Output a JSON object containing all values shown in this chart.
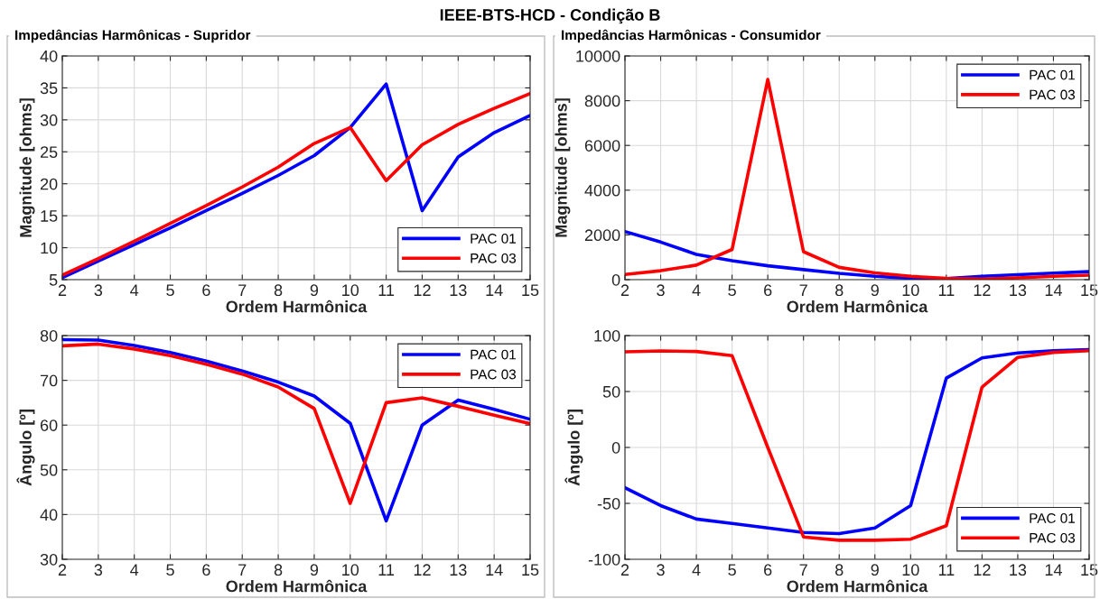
{
  "chart_data": [
    {
      "type": "line",
      "title": "IEEE-BTS-HCD - Condição B",
      "subtitle": "Impedâncias Harmônicas - Supridor",
      "xlabel": "Ordem Harmônica",
      "ylabel": "Magnitude [ohms]",
      "x": [
        2,
        3,
        4,
        5,
        6,
        7,
        8,
        9,
        10,
        11,
        12,
        13,
        14,
        15
      ],
      "xlim": [
        2,
        15
      ],
      "xticks": [
        2,
        3,
        4,
        5,
        6,
        7,
        8,
        9,
        10,
        11,
        12,
        13,
        14,
        15
      ],
      "ylim": [
        5,
        40
      ],
      "yticks": [
        5,
        10,
        15,
        20,
        25,
        30,
        35,
        40
      ],
      "grid": true,
      "legend": "bottom right",
      "series": [
        {
          "name": "PAC 01",
          "color": "#0000ff",
          "values": [
            5.3,
            7.9,
            10.5,
            13.1,
            15.8,
            18.5,
            21.3,
            24.4,
            28.8,
            35.6,
            15.8,
            24.2,
            28,
            30.7
          ]
        },
        {
          "name": "PAC 03",
          "color": "#ff0000",
          "values": [
            5.7,
            8.3,
            11,
            13.8,
            16.6,
            19.5,
            22.6,
            26.3,
            28.8,
            20.5,
            26.1,
            29.3,
            31.8,
            34.1
          ]
        }
      ]
    },
    {
      "type": "line",
      "subtitle": "Impedâncias Harmônicas - Consumidor",
      "xlabel": "Ordem Harmônica",
      "ylabel": "Magnitude [ohms]",
      "x": [
        2,
        3,
        4,
        5,
        6,
        7,
        8,
        9,
        10,
        11,
        12,
        13,
        14,
        15
      ],
      "xlim": [
        2,
        15
      ],
      "xticks": [
        2,
        3,
        4,
        5,
        6,
        7,
        8,
        9,
        10,
        11,
        12,
        13,
        14,
        15
      ],
      "ylim": [
        0,
        10000
      ],
      "yticks": [
        0,
        2000,
        4000,
        6000,
        8000,
        10000
      ],
      "grid": true,
      "legend": "top right",
      "series": [
        {
          "name": "PAC 01",
          "color": "#0000ff",
          "values": [
            2150,
            1680,
            1130,
            850,
            620,
            450,
            280,
            150,
            60,
            50,
            150,
            220,
            290,
            360
          ]
        },
        {
          "name": "PAC 03",
          "color": "#ff0000",
          "values": [
            230,
            400,
            650,
            1350,
            8950,
            1250,
            550,
            300,
            150,
            60,
            30,
            80,
            150,
            200
          ]
        }
      ]
    },
    {
      "type": "line",
      "xlabel": "Ordem Harmônica",
      "ylabel": "Ângulo [º]",
      "x": [
        2,
        3,
        4,
        5,
        6,
        7,
        8,
        9,
        10,
        11,
        12,
        13,
        14,
        15
      ],
      "xlim": [
        2,
        15
      ],
      "xticks": [
        2,
        3,
        4,
        5,
        6,
        7,
        8,
        9,
        10,
        11,
        12,
        13,
        14,
        15
      ],
      "ylim": [
        30,
        80
      ],
      "yticks": [
        30,
        40,
        50,
        60,
        70,
        80
      ],
      "grid": true,
      "legend": "top right",
      "series": [
        {
          "name": "PAC 01",
          "color": "#0000ff",
          "values": [
            79.1,
            79,
            77.8,
            76.2,
            74.3,
            72.1,
            69.6,
            66.5,
            60.4,
            38.6,
            60,
            65.6,
            63.5,
            61.3
          ]
        },
        {
          "name": "PAC 03",
          "color": "#ff0000",
          "values": [
            77.7,
            78.1,
            77,
            75.5,
            73.6,
            71.4,
            68.5,
            63.7,
            42.5,
            65,
            66.1,
            64.2,
            62.2,
            60.3
          ]
        }
      ]
    },
    {
      "type": "line",
      "xlabel": "Ordem Harmônica",
      "ylabel": "Ângulo [º]",
      "x": [
        2,
        3,
        4,
        5,
        6,
        7,
        8,
        9,
        10,
        11,
        12,
        13,
        14,
        15
      ],
      "xlim": [
        2,
        15
      ],
      "xticks": [
        2,
        3,
        4,
        5,
        6,
        7,
        8,
        9,
        10,
        11,
        12,
        13,
        14,
        15
      ],
      "ylim": [
        -100,
        100
      ],
      "yticks": [
        -100,
        -50,
        0,
        50,
        100
      ],
      "grid": true,
      "legend": "bottom right",
      "series": [
        {
          "name": "PAC 01",
          "color": "#0000ff",
          "values": [
            -36,
            -52,
            -64,
            -68,
            -72,
            -76,
            -77,
            -72,
            -52,
            62,
            80,
            84.5,
            86.5,
            87.5
          ]
        },
        {
          "name": "PAC 03",
          "color": "#ff0000",
          "values": [
            85.5,
            86.3,
            85.8,
            82,
            0,
            -80,
            -83,
            -83,
            -82,
            -70,
            54,
            80.5,
            85,
            86.5
          ]
        }
      ]
    }
  ]
}
